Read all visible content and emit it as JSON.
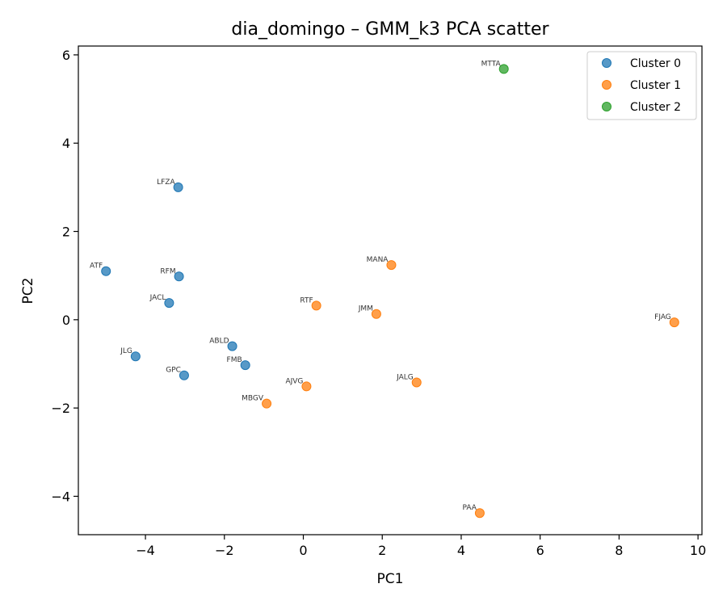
{
  "chart_data": {
    "type": "scatter",
    "title": "dia_domingo – GMM_k3 PCA scatter",
    "xlabel": "PC1",
    "ylabel": "PC2",
    "xlim": [
      -5.7,
      10.1
    ],
    "ylim": [
      -4.87,
      6.2
    ],
    "xticks": [
      -4,
      -2,
      0,
      2,
      4,
      6,
      8,
      10
    ],
    "yticks": [
      -4,
      -2,
      0,
      2,
      4,
      6
    ],
    "xtick_labels": [
      "−4",
      "−2",
      "0",
      "2",
      "4",
      "6",
      "8",
      "10"
    ],
    "ytick_labels": [
      "−4",
      "−2",
      "0",
      "2",
      "4",
      "6"
    ],
    "grid": false,
    "legend": "top-right",
    "series": [
      {
        "name": "Cluster 0",
        "color": "#1f77b4",
        "points": [
          {
            "label": "LFZA",
            "x": -3.17,
            "y": 3.0
          },
          {
            "label": "ATF",
            "x": -5.0,
            "y": 1.1
          },
          {
            "label": "RFM",
            "x": -3.15,
            "y": 0.98
          },
          {
            "label": "JACL",
            "x": -3.4,
            "y": 0.38
          },
          {
            "label": "ABLD",
            "x": -1.8,
            "y": -0.6
          },
          {
            "label": "FMB",
            "x": -1.47,
            "y": -1.03
          },
          {
            "label": "JLG",
            "x": -4.25,
            "y": -0.83
          },
          {
            "label": "GPC",
            "x": -3.02,
            "y": -1.26
          }
        ]
      },
      {
        "name": "Cluster 1",
        "color": "#ff7f0e",
        "points": [
          {
            "label": "MANA",
            "x": 2.23,
            "y": 1.24
          },
          {
            "label": "RTF",
            "x": 0.33,
            "y": 0.32
          },
          {
            "label": "JMM",
            "x": 1.85,
            "y": 0.13
          },
          {
            "label": "FJAG",
            "x": 9.4,
            "y": -0.06
          },
          {
            "label": "JALG",
            "x": 2.87,
            "y": -1.42
          },
          {
            "label": "AJVG",
            "x": 0.08,
            "y": -1.51
          },
          {
            "label": "MBGV",
            "x": -0.93,
            "y": -1.9
          },
          {
            "label": "PAA",
            "x": 4.47,
            "y": -4.38
          }
        ]
      },
      {
        "name": "Cluster 2",
        "color": "#2ca02c",
        "points": [
          {
            "label": "MTTA",
            "x": 5.08,
            "y": 5.68
          }
        ]
      }
    ]
  }
}
